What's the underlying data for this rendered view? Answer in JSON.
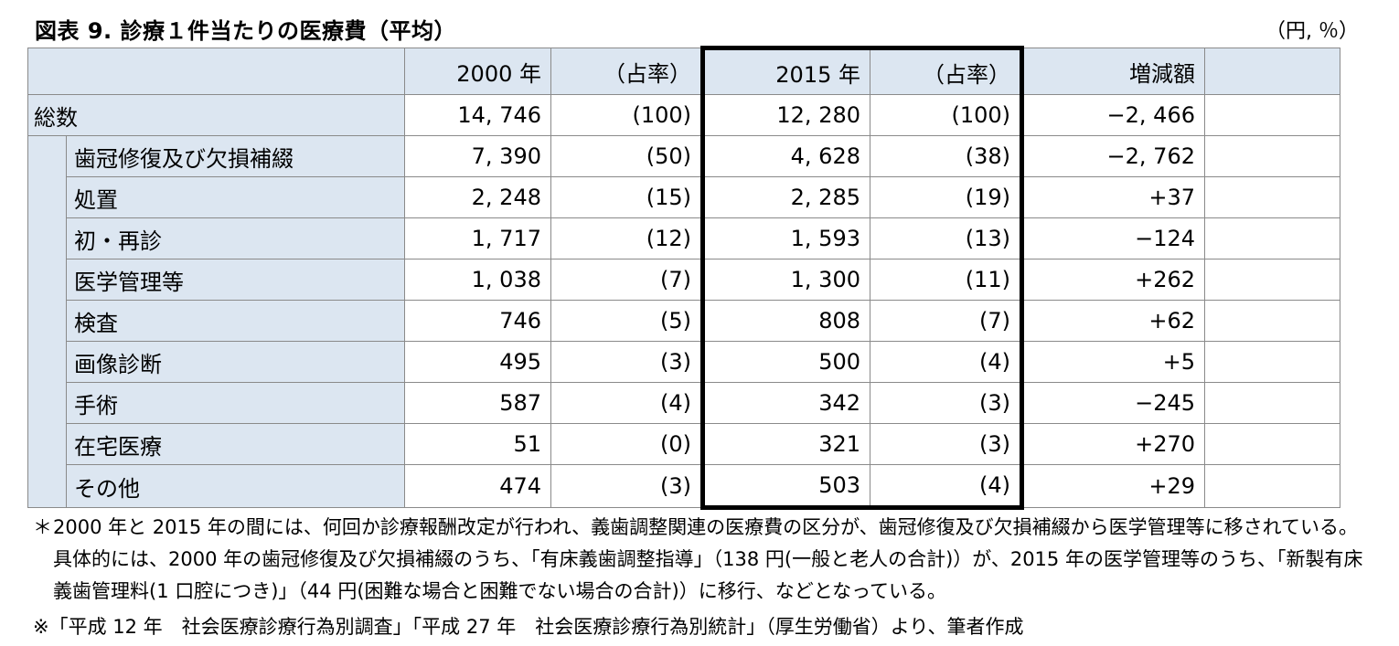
{
  "title": "図表 9.  診療１件当たりの医療費（平均）",
  "unit": "（円, ％）",
  "table": {
    "headers": {
      "y2000": "2000 年",
      "share2000": "（占率）",
      "y2015": "2015 年",
      "share2015": "（占率）",
      "diff": "増減額"
    },
    "total": {
      "label": "総数",
      "v2000": "14, 746",
      "s2000": "(100)",
      "v2015": "12, 280",
      "s2015": "(100)",
      "diff": "−2, 466"
    },
    "rows": [
      {
        "label": "歯冠修復及び欠損補綴",
        "v2000": "7, 390",
        "s2000": "(50)",
        "v2015": "4, 628",
        "s2015": "(38)",
        "diff": "−2, 762"
      },
      {
        "label": "処置",
        "v2000": "2, 248",
        "s2000": "(15)",
        "v2015": "2, 285",
        "s2015": "(19)",
        "diff": "+37"
      },
      {
        "label": "初・再診",
        "v2000": "1, 717",
        "s2000": "(12)",
        "v2015": "1, 593",
        "s2015": "(13)",
        "diff": "−124"
      },
      {
        "label": "医学管理等",
        "v2000": "1, 038",
        "s2000": "(7)",
        "v2015": "1, 300",
        "s2015": "(11)",
        "diff": "+262"
      },
      {
        "label": "検査",
        "v2000": "746",
        "s2000": "(5)",
        "v2015": "808",
        "s2015": "(7)",
        "diff": "+62"
      },
      {
        "label": "画像診断",
        "v2000": "495",
        "s2000": "(3)",
        "v2015": "500",
        "s2015": "(4)",
        "diff": "+5"
      },
      {
        "label": "手術",
        "v2000": "587",
        "s2000": "(4)",
        "v2015": "342",
        "s2015": "(3)",
        "diff": "−245"
      },
      {
        "label": "在宅医療",
        "v2000": "51",
        "s2000": "(0)",
        "v2015": "321",
        "s2015": "(3)",
        "diff": "+270"
      },
      {
        "label": "その他",
        "v2000": "474",
        "s2000": "(3)",
        "v2015": "503",
        "s2015": "(4)",
        "diff": "+29"
      }
    ]
  },
  "notes": {
    "star_mark": "＊",
    "star_text": "2000 年と 2015 年の間には、何回か診療報酬改定が行われ、義歯調整関連の医療費の区分が、歯冠修復及び欠損補綴から医学管理等に移されている。具体的には、2000 年の歯冠修復及び欠損補綴のうち、「有床義歯調整指導」（138 円(一般と老人の合計)）が、2015 年の医学管理等のうち、「新製有床義歯管理料(1 口腔につき)」（44 円(困難な場合と困難でない場合の合計)）に移行、などとなっている。",
    "source": "※「平成 12 年　社会医療診療行為別調査」「平成 27 年　社会医療診療行為別統計」（厚生労働省）より、筆者作成"
  }
}
